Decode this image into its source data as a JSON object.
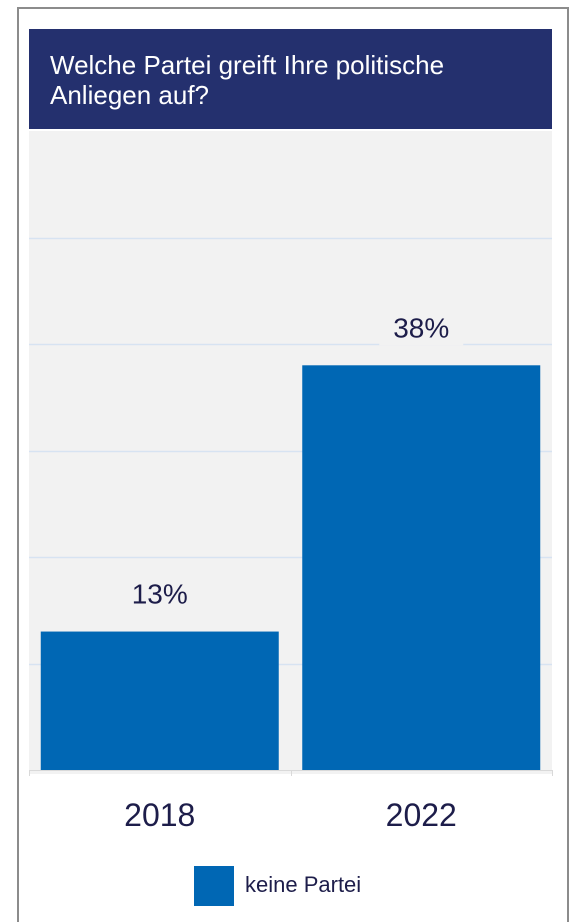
{
  "chart_data": {
    "type": "bar",
    "title": "Welche Partei greift Ihre politische Anliegen auf?",
    "categories": [
      "2018",
      "2022"
    ],
    "series": [
      {
        "name": "keine Partei",
        "values": [
          13,
          38
        ],
        "labels": [
          "13%",
          "38%"
        ]
      }
    ],
    "ylim": [
      0,
      60
    ],
    "grid": true,
    "legend": "bottom",
    "colors": {
      "bar": "#0067b4",
      "title_bg": "#24306e",
      "plot_bg": "#f2f2f2",
      "grid": "#d7e3f2"
    }
  }
}
